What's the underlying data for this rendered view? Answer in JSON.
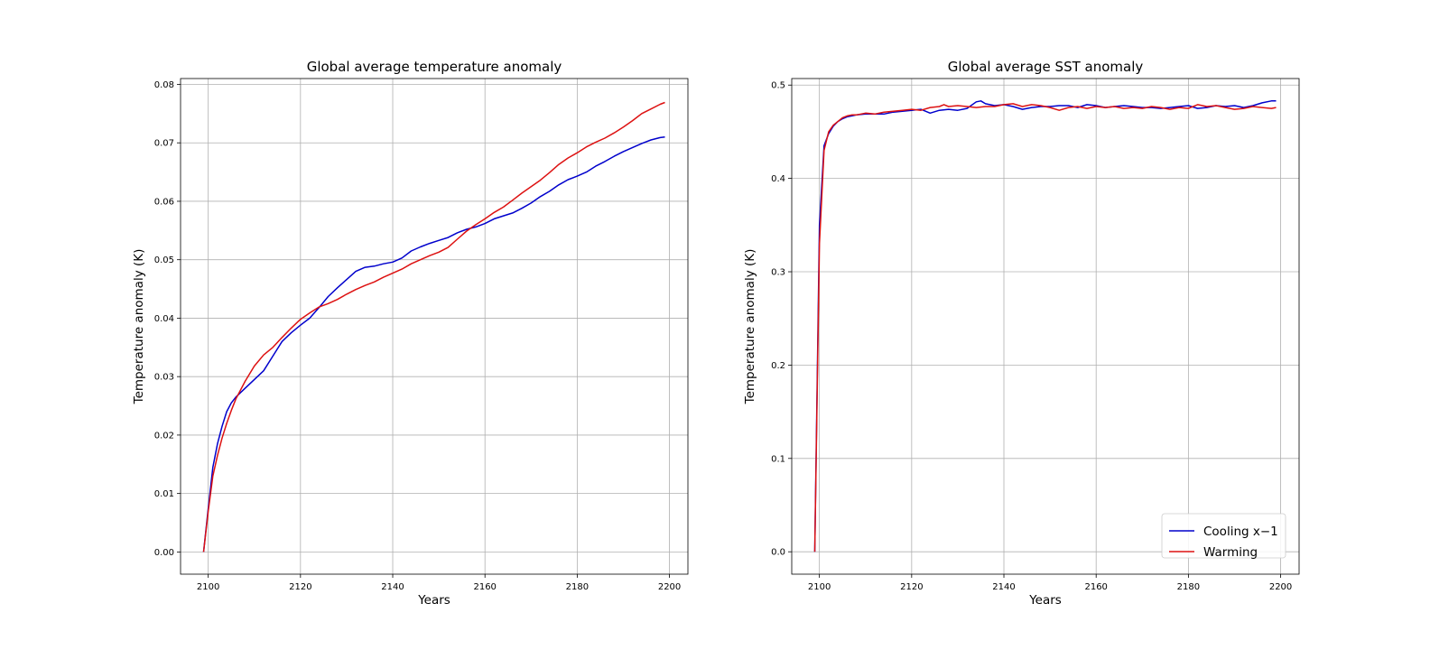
{
  "legend": {
    "entries": [
      "Cooling x−1",
      "Warming"
    ],
    "placement": "lower-right"
  },
  "colors": {
    "Cooling": "#0000cc",
    "Warming": "#dd1111",
    "grid": "#b0b0b0"
  },
  "chart_data": [
    {
      "type": "line",
      "title": "Global average temperature anomaly",
      "xlabel": "Years",
      "ylabel": "Temperature anomaly (K)",
      "xlim": [
        2094,
        2204
      ],
      "ylim": [
        -0.0038,
        0.081
      ],
      "xticks": [
        2100,
        2120,
        2140,
        2160,
        2180,
        2200
      ],
      "yticks": [
        0.0,
        0.01,
        0.02,
        0.03,
        0.04,
        0.05,
        0.06,
        0.07,
        0.08
      ],
      "ytick_labels": [
        "0.00",
        "0.01",
        "0.02",
        "0.03",
        "0.04",
        "0.05",
        "0.06",
        "0.07",
        "0.08"
      ],
      "grid": true,
      "series": [
        {
          "name": "Cooling x−1",
          "color": "#0000cc",
          "x": [
            2099,
            2100,
            2101,
            2102,
            2103,
            2104,
            2105,
            2106,
            2108,
            2110,
            2112,
            2114,
            2116,
            2118,
            2120,
            2122,
            2124,
            2126,
            2128,
            2130,
            2132,
            2134,
            2136,
            2138,
            2140,
            2142,
            2144,
            2146,
            2148,
            2150,
            2152,
            2154,
            2156,
            2158,
            2160,
            2162,
            2164,
            2166,
            2168,
            2170,
            2172,
            2174,
            2176,
            2178,
            2180,
            2182,
            2184,
            2186,
            2188,
            2190,
            2192,
            2194,
            2196,
            2198,
            2199
          ],
          "y": [
            0.0,
            0.0075,
            0.0145,
            0.0185,
            0.0215,
            0.024,
            0.0255,
            0.0265,
            0.028,
            0.0295,
            0.031,
            0.0335,
            0.036,
            0.0375,
            0.0388,
            0.04,
            0.0418,
            0.0437,
            0.0452,
            0.0466,
            0.048,
            0.0487,
            0.0489,
            0.0493,
            0.0496,
            0.0503,
            0.0515,
            0.0522,
            0.0528,
            0.0533,
            0.0538,
            0.0546,
            0.0552,
            0.0556,
            0.0562,
            0.057,
            0.0575,
            0.058,
            0.0588,
            0.0597,
            0.0608,
            0.0617,
            0.0628,
            0.0637,
            0.0643,
            0.065,
            0.066,
            0.0668,
            0.0677,
            0.0685,
            0.0692,
            0.0699,
            0.0705,
            0.0709,
            0.071
          ]
        },
        {
          "name": "Warming",
          "color": "#dd1111",
          "x": [
            2099,
            2100,
            2101,
            2102,
            2103,
            2104,
            2105,
            2106,
            2108,
            2110,
            2112,
            2114,
            2116,
            2118,
            2120,
            2122,
            2124,
            2126,
            2128,
            2130,
            2132,
            2134,
            2136,
            2138,
            2140,
            2142,
            2144,
            2146,
            2148,
            2150,
            2152,
            2154,
            2156,
            2158,
            2160,
            2162,
            2164,
            2166,
            2168,
            2170,
            2172,
            2174,
            2176,
            2178,
            2180,
            2182,
            2184,
            2186,
            2188,
            2190,
            2192,
            2194,
            2196,
            2198,
            2199
          ],
          "y": [
            0.0,
            0.007,
            0.013,
            0.0165,
            0.0195,
            0.022,
            0.0242,
            0.0262,
            0.0292,
            0.0318,
            0.0337,
            0.035,
            0.0367,
            0.0383,
            0.0398,
            0.0409,
            0.0419,
            0.0425,
            0.0432,
            0.0441,
            0.0449,
            0.0456,
            0.0462,
            0.047,
            0.0477,
            0.0484,
            0.0493,
            0.05,
            0.0507,
            0.0513,
            0.0521,
            0.0535,
            0.0549,
            0.056,
            0.057,
            0.0581,
            0.059,
            0.0602,
            0.0614,
            0.0625,
            0.0636,
            0.0649,
            0.0663,
            0.0674,
            0.0683,
            0.0693,
            0.0701,
            0.0708,
            0.0717,
            0.0727,
            0.0738,
            0.075,
            0.0758,
            0.0766,
            0.0769
          ]
        }
      ]
    },
    {
      "type": "line",
      "title": "Global average SST anomaly",
      "xlabel": "Years",
      "ylabel": "Temperature anomaly (K)",
      "xlim": [
        2094,
        2204
      ],
      "ylim": [
        -0.024,
        0.507
      ],
      "xticks": [
        2100,
        2120,
        2140,
        2160,
        2180,
        2200
      ],
      "yticks": [
        0.0,
        0.1,
        0.2,
        0.3,
        0.4,
        0.5
      ],
      "ytick_labels": [
        "0.0",
        "0.1",
        "0.2",
        "0.3",
        "0.4",
        "0.5"
      ],
      "grid": true,
      "legend": "lower-right",
      "series": [
        {
          "name": "Cooling x−1",
          "color": "#0000cc",
          "x": [
            2099,
            2100,
            2101,
            2102,
            2103,
            2104,
            2105,
            2106,
            2107,
            2108,
            2110,
            2112,
            2114,
            2116,
            2118,
            2120,
            2122,
            2124,
            2126,
            2128,
            2130,
            2132,
            2134,
            2135,
            2136,
            2138,
            2140,
            2142,
            2144,
            2146,
            2148,
            2150,
            2152,
            2154,
            2156,
            2158,
            2160,
            2162,
            2164,
            2166,
            2168,
            2170,
            2172,
            2174,
            2176,
            2178,
            2180,
            2182,
            2184,
            2186,
            2188,
            2190,
            2192,
            2194,
            2196,
            2198,
            2199
          ],
          "y": [
            0.0,
            0.35,
            0.435,
            0.448,
            0.456,
            0.461,
            0.464,
            0.466,
            0.467,
            0.468,
            0.469,
            0.469,
            0.469,
            0.471,
            0.472,
            0.473,
            0.474,
            0.47,
            0.473,
            0.474,
            0.473,
            0.475,
            0.482,
            0.483,
            0.48,
            0.478,
            0.479,
            0.477,
            0.474,
            0.476,
            0.477,
            0.477,
            0.478,
            0.478,
            0.476,
            0.479,
            0.478,
            0.476,
            0.477,
            0.478,
            0.477,
            0.476,
            0.476,
            0.475,
            0.476,
            0.477,
            0.478,
            0.475,
            0.476,
            0.478,
            0.477,
            0.478,
            0.476,
            0.478,
            0.481,
            0.483,
            0.483
          ]
        },
        {
          "name": "Warming",
          "color": "#dd1111",
          "x": [
            2099,
            2100,
            2101,
            2102,
            2103,
            2104,
            2105,
            2106,
            2107,
            2108,
            2110,
            2112,
            2114,
            2116,
            2118,
            2120,
            2122,
            2124,
            2126,
            2127,
            2128,
            2130,
            2132,
            2134,
            2136,
            2138,
            2140,
            2142,
            2144,
            2146,
            2148,
            2150,
            2152,
            2154,
            2156,
            2158,
            2160,
            2162,
            2164,
            2166,
            2168,
            2170,
            2172,
            2174,
            2176,
            2178,
            2180,
            2182,
            2184,
            2186,
            2188,
            2190,
            2192,
            2194,
            2196,
            2198,
            2199
          ],
          "y": [
            0.0,
            0.33,
            0.43,
            0.45,
            0.457,
            0.461,
            0.465,
            0.467,
            0.468,
            0.468,
            0.47,
            0.469,
            0.471,
            0.472,
            0.473,
            0.474,
            0.473,
            0.476,
            0.477,
            0.479,
            0.477,
            0.478,
            0.477,
            0.476,
            0.477,
            0.477,
            0.479,
            0.48,
            0.477,
            0.479,
            0.478,
            0.476,
            0.473,
            0.476,
            0.477,
            0.475,
            0.477,
            0.476,
            0.477,
            0.475,
            0.476,
            0.475,
            0.477,
            0.476,
            0.474,
            0.476,
            0.475,
            0.479,
            0.477,
            0.478,
            0.476,
            0.474,
            0.475,
            0.477,
            0.476,
            0.475,
            0.476
          ]
        }
      ]
    }
  ]
}
